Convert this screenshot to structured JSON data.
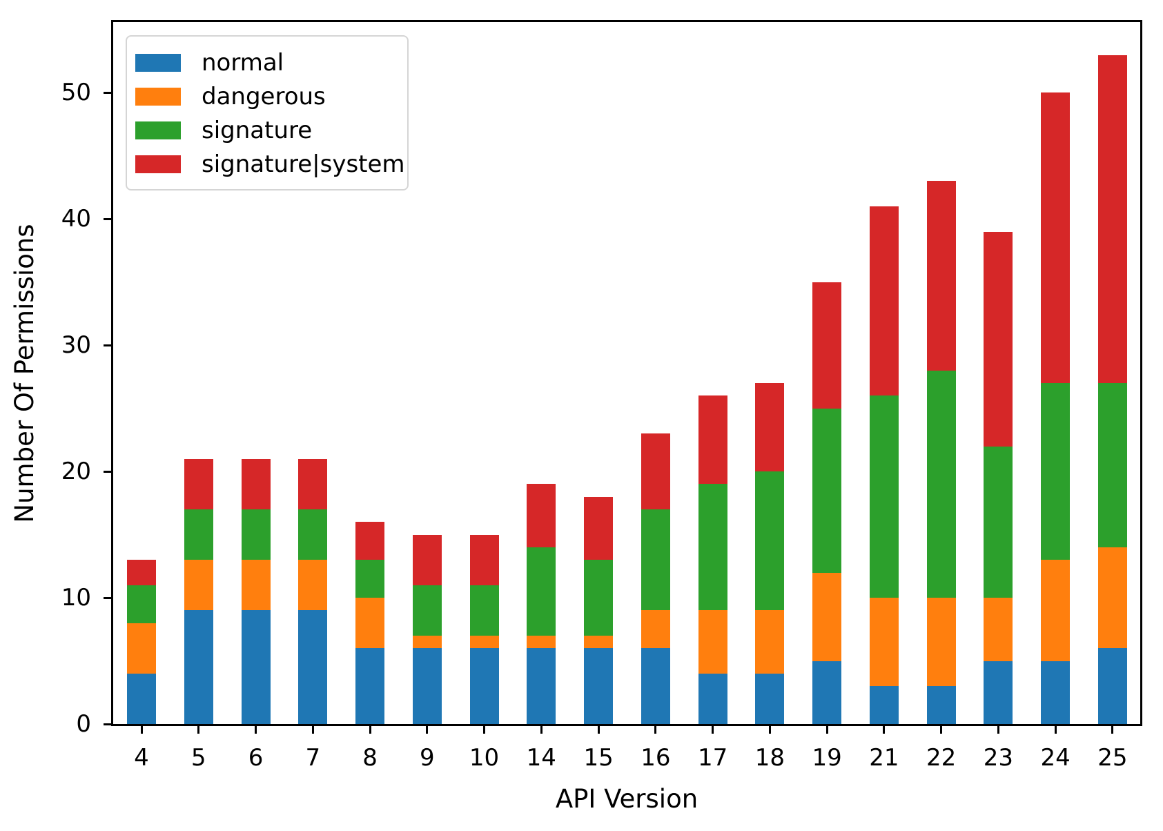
{
  "chart_data": {
    "type": "bar",
    "stacked": true,
    "title": "",
    "xlabel": "API Version",
    "ylabel": "Number Of Permissions",
    "categories": [
      "4",
      "5",
      "6",
      "7",
      "8",
      "9",
      "10",
      "14",
      "15",
      "16",
      "17",
      "18",
      "19",
      "21",
      "22",
      "23",
      "24",
      "25"
    ],
    "series": [
      {
        "name": "normal",
        "color": "#1f77b4",
        "values": [
          4,
          9,
          9,
          9,
          6,
          6,
          6,
          6,
          6,
          6,
          4,
          4,
          5,
          3,
          3,
          5,
          5,
          6
        ]
      },
      {
        "name": "dangerous",
        "color": "#ff7f0e",
        "values": [
          4,
          4,
          4,
          4,
          4,
          1,
          1,
          1,
          1,
          3,
          5,
          5,
          7,
          7,
          7,
          5,
          8,
          8
        ]
      },
      {
        "name": "signature",
        "color": "#2ca02c",
        "values": [
          3,
          4,
          4,
          4,
          3,
          4,
          4,
          7,
          6,
          8,
          10,
          11,
          13,
          16,
          18,
          12,
          14,
          13
        ]
      },
      {
        "name": "signature|system",
        "color": "#d62728",
        "values": [
          2,
          4,
          4,
          4,
          3,
          4,
          4,
          5,
          5,
          6,
          7,
          7,
          10,
          15,
          15,
          17,
          23,
          26
        ]
      }
    ],
    "yticks": [
      0,
      10,
      20,
      30,
      40,
      50
    ],
    "ylim": [
      0,
      55.6
    ],
    "grid": false,
    "legend_position": "upper left",
    "axis_color": "#000000",
    "background_color": "#ffffff"
  }
}
